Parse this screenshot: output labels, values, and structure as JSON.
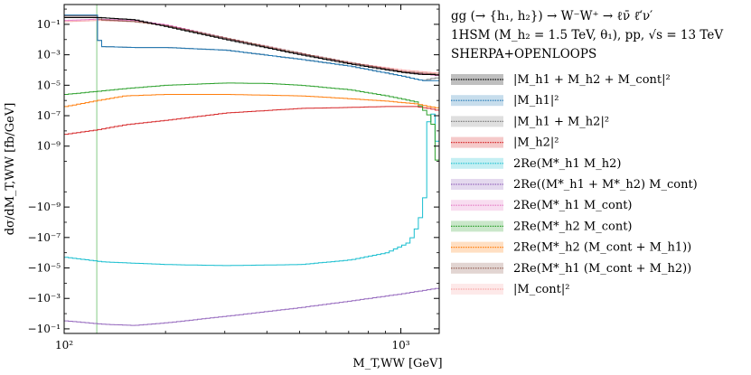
{
  "chart_data": {
    "type": "line",
    "title_lines": [
      "gg (→ {h₁, h₂}) → W⁻W⁺ → ℓν̄ ℓ̄′ν′",
      "1HSM (M_h₂ = 1.5 TeV, θ₁),  pp,  √s = 13 TeV",
      "SHERPA+OPENLOOPS"
    ],
    "xlabel": "M_T,WW [GeV]",
    "ylabel": "dσ/dM_T,WW  [fb/GeV]",
    "x_scale": "log",
    "y_scale": "symlog",
    "xlim": [
      100,
      1300
    ],
    "ylim": [
      -0.2,
      2.0
    ],
    "linthresh": 1e-10,
    "x_ticks": [
      {
        "value": 100,
        "label": "10²"
      },
      {
        "value": 1000,
        "label": "10³"
      }
    ],
    "y_ticks": [
      {
        "value": 0.1,
        "label": "10⁻¹"
      },
      {
        "value": 0.001,
        "label": "10⁻³"
      },
      {
        "value": 1e-05,
        "label": "10⁻⁵"
      },
      {
        "value": 1e-07,
        "label": "10⁻⁷"
      },
      {
        "value": 1e-09,
        "label": "10⁻⁹"
      },
      {
        "value": -1e-09,
        "label": "−10⁻⁹"
      },
      {
        "value": -1e-07,
        "label": "−10⁻⁷"
      },
      {
        "value": -1e-05,
        "label": "−10⁻⁵"
      },
      {
        "value": -0.001,
        "label": "−10⁻³"
      },
      {
        "value": -0.1,
        "label": "−10⁻¹"
      }
    ],
    "vertical_line": {
      "x": 125,
      "color": "#9bd49b"
    },
    "legend_position": "right",
    "series": [
      {
        "name": "|M_h1 + M_h2 + M_cont|²",
        "color": "#000000",
        "x": [
          100,
          125,
          160,
          200,
          300,
          500,
          700,
          1000,
          1150,
          1250,
          1300
        ],
        "y": [
          0.28,
          0.28,
          0.2,
          0.07,
          0.01,
          0.001,
          0.00025,
          7e-05,
          5e-05,
          5e-05,
          4e-05
        ]
      },
      {
        "name": "|M_h1|²",
        "color": "#1f77b4",
        "x": [
          100,
          124,
          126,
          160,
          200,
          300,
          500,
          700,
          1000,
          1150,
          1300
        ],
        "y": [
          0.4,
          0.4,
          0.0035,
          0.003,
          0.003,
          0.002,
          0.0005,
          0.00018,
          4e-05,
          2e-05,
          2e-05
        ]
      },
      {
        "name": "|M_h1 + M_h2|²",
        "color": "#7f7f7f",
        "x": [
          100,
          124,
          126,
          160,
          200,
          300,
          500,
          700,
          1000,
          1150,
          1250,
          1300
        ],
        "y": [
          0.4,
          0.4,
          0.0035,
          0.003,
          0.003,
          0.002,
          0.0005,
          0.00018,
          4e-05,
          2e-05,
          3e-05,
          3e-05
        ]
      },
      {
        "name": "|M_h2|²",
        "color": "#d62728",
        "x": [
          100,
          125,
          150,
          200,
          300,
          500,
          700,
          900,
          1100,
          1200,
          1300
        ],
        "y": [
          6e-09,
          1.2e-08,
          2.5e-08,
          5e-08,
          1.5e-07,
          3e-07,
          3.5e-07,
          4e-07,
          4e-07,
          3e-07,
          2e-07
        ]
      },
      {
        "name": "2Re(M*_h1 M_h2)",
        "color": "#17becf",
        "x": [
          100,
          130,
          200,
          300,
          500,
          700,
          900,
          1050,
          1120,
          1170,
          1190,
          1210,
          1230,
          1250,
          1270,
          1300
        ],
        "y": [
          -2e-06,
          -4e-06,
          -6e-06,
          -7e-06,
          -6e-06,
          -3e-06,
          -1e-06,
          -2e-07,
          -1e-08,
          -1e-10,
          2e-08,
          1e-06,
          1e-07,
          1e-08,
          1e-09,
          1e-09
        ]
      },
      {
        "name": "2Re((M*_h1 + M*_h2) M_cont)",
        "color": "#9467bd",
        "x": [
          100,
          130,
          160,
          200,
          300,
          500,
          700,
          1000,
          1300
        ],
        "y": [
          -0.03,
          -0.05,
          -0.06,
          -0.04,
          -0.015,
          -0.004,
          -0.0015,
          -0.0005,
          -0.0002
        ]
      },
      {
        "name": "2Re(M*_h1 M_cont)",
        "color": "#e377c2",
        "x": [
          100,
          125,
          160,
          200,
          300,
          500,
          700,
          1000,
          1300
        ],
        "y": [
          0.18,
          0.22,
          0.18,
          0.09,
          0.012,
          0.0012,
          0.0003,
          8e-05,
          4e-05
        ]
      },
      {
        "name": "2Re(M*_h2 M_cont)",
        "color": "#2ca02c",
        "x": [
          100,
          125,
          150,
          200,
          300,
          400,
          500,
          700,
          900,
          1100,
          1200,
          1250,
          1300
        ],
        "y": [
          2.5e-06,
          4e-06,
          6e-06,
          1e-05,
          1.4e-05,
          1.3e-05,
          1e-05,
          5e-06,
          2e-06,
          8e-07,
          1e-07,
          1e-08,
          -1e-07
        ]
      },
      {
        "name": "2Re(M*_h2 (M_cont + M_h1))",
        "color": "#ff7f0e",
        "x": [
          100,
          125,
          150,
          200,
          300,
          500,
          700,
          900,
          1100,
          1200,
          1300
        ],
        "y": [
          4e-07,
          1e-06,
          2e-06,
          2.5e-06,
          2.5e-06,
          2e-06,
          1.3e-06,
          9e-07,
          6e-07,
          4e-07,
          3e-07
        ]
      },
      {
        "name": "2Re(M*_h1 (M_cont + M_h2))",
        "color": "#8c564b",
        "x": [
          100,
          124,
          126,
          160,
          200,
          300,
          500,
          700,
          1000,
          1300
        ],
        "y": [
          0.35,
          0.35,
          0.2,
          0.15,
          0.08,
          0.012,
          0.0012,
          0.0003,
          8e-05,
          5e-05
        ]
      },
      {
        "name": "|M_cont|²",
        "color": "#f7a6a6",
        "x": [
          100,
          125,
          160,
          200,
          300,
          500,
          700,
          1000,
          1300
        ],
        "y": [
          0.15,
          0.18,
          0.15,
          0.08,
          0.012,
          0.0012,
          0.0003,
          0.0001,
          6e-05
        ]
      }
    ]
  }
}
